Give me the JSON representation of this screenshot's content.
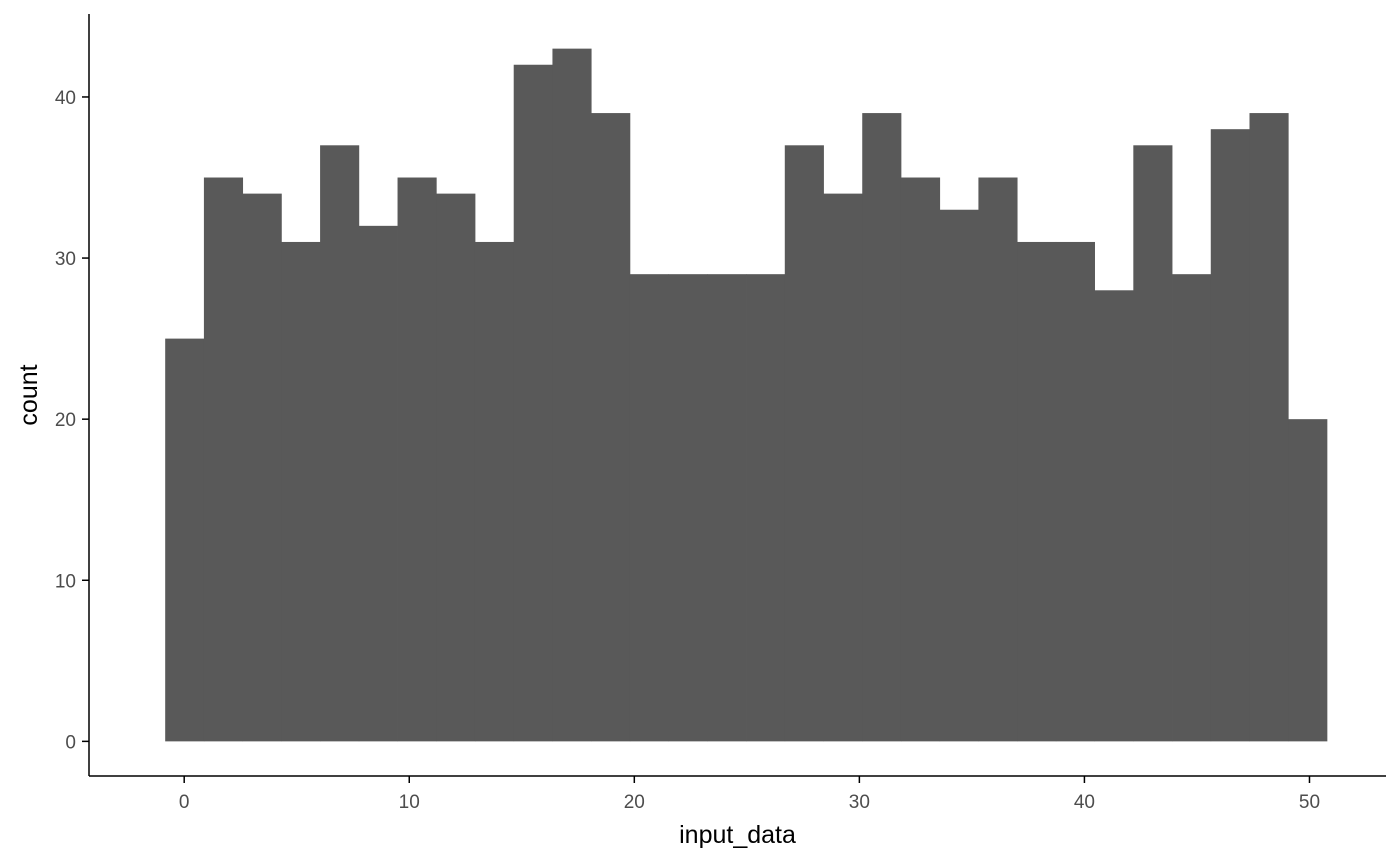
{
  "chart_data": {
    "type": "bar",
    "subtype": "histogram",
    "title": "",
    "xlabel": "input_data",
    "ylabel": "count",
    "bin_edges": [
      -0.8448,
      0.8759,
      2.5966,
      4.3172,
      6.0379,
      7.7586,
      9.4793,
      11.2,
      12.9207,
      14.6414,
      16.3621,
      18.0828,
      19.8034,
      21.5241,
      23.2448,
      24.9655,
      26.6862,
      28.4069,
      30.1276,
      31.8483,
      33.569,
      35.2897,
      37.0103,
      38.731,
      40.4517,
      42.1724,
      43.8931,
      45.6138,
      47.3345,
      49.0552,
      50.7759
    ],
    "values": [
      25,
      35,
      34,
      31,
      37,
      32,
      35,
      34,
      31,
      42,
      43,
      39,
      29,
      29,
      29,
      29,
      37,
      34,
      39,
      35,
      33,
      35,
      31,
      31,
      28,
      37,
      29,
      38,
      39,
      20
    ],
    "x_ticks": [
      0,
      10,
      20,
      30,
      40,
      50
    ],
    "x_tick_labels": [
      "0",
      "10",
      "20",
      "30",
      "40",
      "50"
    ],
    "y_ticks": [
      0,
      10,
      20,
      30,
      40
    ],
    "y_tick_labels": [
      "0",
      "10",
      "20",
      "30",
      "40"
    ],
    "xlim": [
      -4.23,
      53.4
    ],
    "ylim": [
      -2.15,
      45.15
    ],
    "grid": false,
    "bar_color": "#595959",
    "axis_color": "#000000",
    "tick_label_color": "#4d4d4d"
  }
}
